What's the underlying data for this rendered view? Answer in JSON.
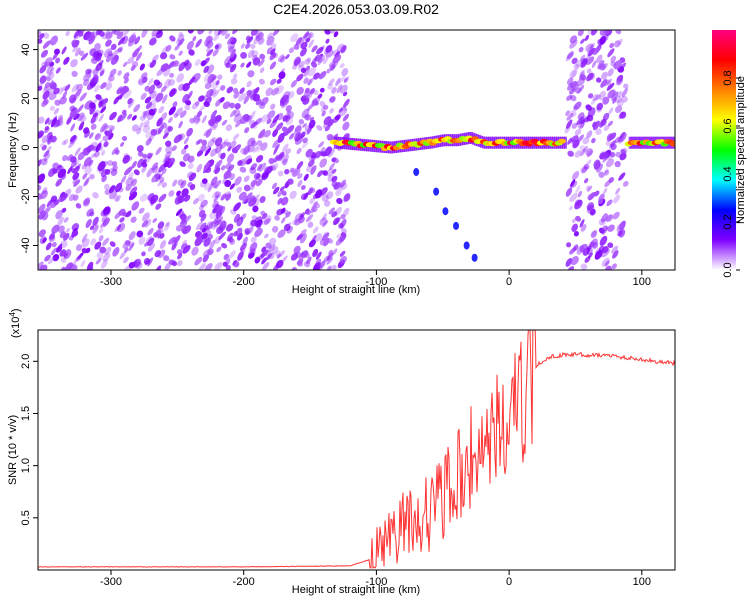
{
  "figure_title": "C2E4.2026.053.03.09.R02",
  "chart_data": [
    {
      "type": "heatmap",
      "title": "C2E4.2026.053.03.09.R02",
      "xlabel": "Height of straight line (km)",
      "ylabel": "Frequency (Hz)",
      "xlim": [
        -355,
        125
      ],
      "ylim": [
        -50,
        48
      ],
      "xticks": [
        -300,
        -200,
        -100,
        0,
        100
      ],
      "xtick_labels": [
        "-300",
        "-200",
        "-100",
        "0",
        "100"
      ],
      "yticks": [
        -40,
        -20,
        0,
        20,
        40
      ],
      "ytick_labels": [
        "-40",
        "-20",
        "0",
        "20",
        "40"
      ],
      "colorbar": {
        "label": "Normalized spectral amplitude",
        "range": [
          0.0,
          1.0
        ],
        "ticks": [
          0.0,
          0.2,
          0.4,
          0.6,
          0.8
        ],
        "tick_labels": [
          "0.0",
          "0.2",
          "0.4",
          "0.6",
          "0.8"
        ],
        "colors": [
          "#ffffff",
          "#8000ff",
          "#0000ff",
          "#00ffff",
          "#00ff00",
          "#ffff00",
          "#ff8000",
          "#ff0000",
          "#ff0080"
        ]
      },
      "regions": [
        {
          "name": "broadband noise",
          "x_range": [
            -355,
            -122
          ],
          "freq_range": [
            -50,
            48
          ],
          "amplitude": 0.2
        },
        {
          "name": "carrier line",
          "x_range": [
            -132,
            42
          ],
          "freq": 2,
          "amplitude": 0.85
        },
        {
          "name": "broadband noise",
          "x_range": [
            44,
            88
          ],
          "freq_range": [
            -50,
            48
          ],
          "amplitude": 0.2
        },
        {
          "name": "carrier line",
          "x_range": [
            90,
            125
          ],
          "freq": 2,
          "amplitude": 0.85
        }
      ],
      "carrier_trace": [
        [
          -130,
          2
        ],
        [
          -110,
          1
        ],
        [
          -90,
          0
        ],
        [
          -75,
          1
        ],
        [
          -60,
          2
        ],
        [
          -50,
          3
        ],
        [
          -40,
          3
        ],
        [
          -30,
          4
        ],
        [
          -20,
          2
        ],
        [
          -10,
          2
        ],
        [
          0,
          2
        ],
        [
          20,
          2
        ],
        [
          40,
          2
        ]
      ],
      "secondary_trace": [
        [
          -70,
          -10
        ],
        [
          -55,
          -18
        ],
        [
          -48,
          -26
        ],
        [
          -40,
          -32
        ],
        [
          -32,
          -40
        ],
        [
          -26,
          -45
        ]
      ]
    },
    {
      "type": "line",
      "title": "",
      "xlabel": "Height of straight line (km)",
      "ylabel": "SNR (10 * v/v)",
      "y_scale_label": "(x10",
      "y_scale_exponent": "4",
      "xlim": [
        -355,
        125
      ],
      "ylim": [
        0.0,
        2.3
      ],
      "xticks": [
        -300,
        -200,
        -100,
        0,
        100
      ],
      "xtick_labels": [
        "-300",
        "-200",
        "-100",
        "0",
        "100"
      ],
      "yticks": [
        0.5,
        1.0,
        1.5,
        2.0
      ],
      "ytick_labels": [
        "0.5",
        "1.0",
        "1.5",
        "2.0"
      ],
      "series": [
        {
          "name": "SNR",
          "color": "#ff3333",
          "x": [
            -355,
            -300,
            -200,
            -120,
            -105,
            -95,
            -85,
            -75,
            -65,
            -55,
            -45,
            -35,
            -25,
            -15,
            -5,
            5,
            10,
            15,
            20,
            25,
            30,
            40,
            50,
            60,
            70,
            80,
            90,
            100,
            110,
            125
          ],
          "y": [
            0.03,
            0.03,
            0.03,
            0.04,
            0.1,
            0.25,
            0.4,
            0.5,
            0.55,
            0.65,
            0.8,
            1.0,
            1.2,
            1.3,
            1.45,
            1.55,
            1.7,
            1.85,
            1.95,
            2.0,
            2.04,
            2.06,
            2.07,
            2.06,
            2.06,
            2.05,
            2.03,
            2.02,
            2.0,
            1.98
          ]
        }
      ]
    }
  ]
}
